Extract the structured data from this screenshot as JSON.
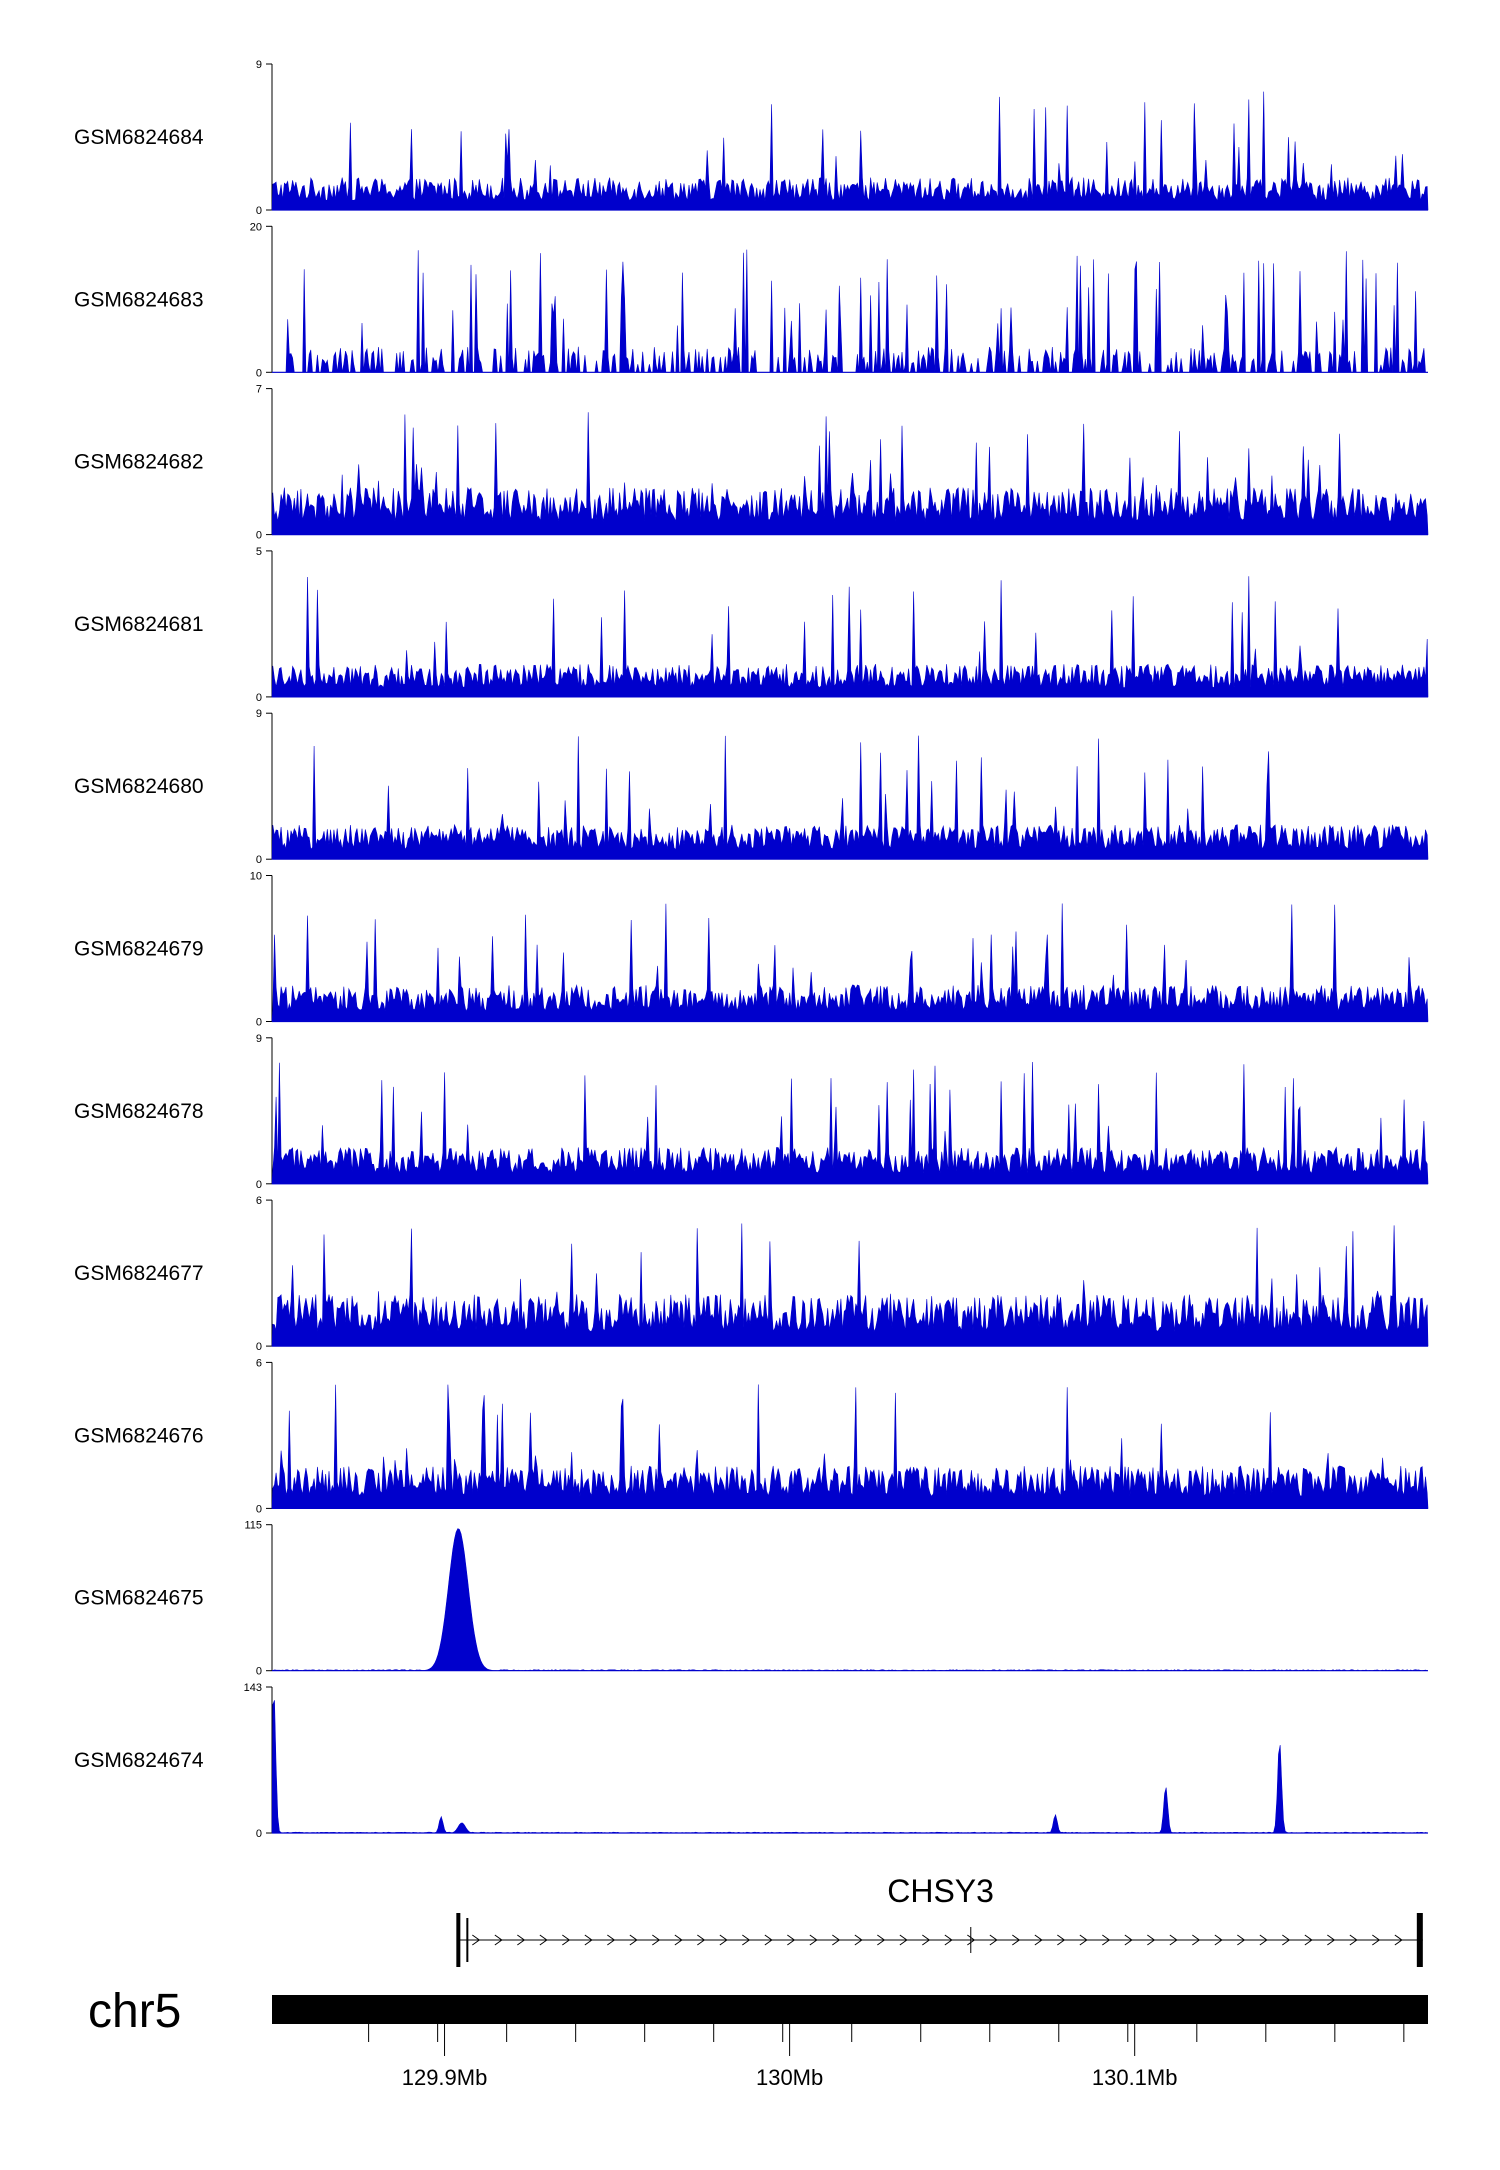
{
  "chart_data": {
    "type": "genome-track",
    "title": "",
    "track_color": "#0000CC",
    "gene_color": "#000000",
    "tracks": [
      {
        "sample": "GSM6824684",
        "ymin": 0,
        "ymax": 9,
        "pattern": "noise",
        "base": 1.6,
        "spike_rate": 0.05
      },
      {
        "sample": "GSM6824683",
        "ymin": 0,
        "ymax": 20,
        "pattern": "sparse",
        "base": 2.5,
        "spike_rate": 0.1
      },
      {
        "sample": "GSM6824682",
        "ymin": 0,
        "ymax": 7,
        "pattern": "noise",
        "base": 1.8,
        "spike_rate": 0.05
      },
      {
        "sample": "GSM6824681",
        "ymin": 0,
        "ymax": 5,
        "pattern": "noise",
        "base": 0.9,
        "spike_rate": 0.04
      },
      {
        "sample": "GSM6824680",
        "ymin": 0,
        "ymax": 9,
        "pattern": "noise",
        "base": 1.7,
        "spike_rate": 0.05
      },
      {
        "sample": "GSM6824679",
        "ymin": 0,
        "ymax": 10,
        "pattern": "noise",
        "base": 2.0,
        "spike_rate": 0.05
      },
      {
        "sample": "GSM6824678",
        "ymin": 0,
        "ymax": 9,
        "pattern": "noise",
        "base": 1.8,
        "spike_rate": 0.05
      },
      {
        "sample": "GSM6824677",
        "ymin": 0,
        "ymax": 6,
        "pattern": "noise",
        "base": 1.7,
        "spike_rate": 0.05
      },
      {
        "sample": "GSM6824676",
        "ymin": 0,
        "ymax": 6,
        "pattern": "noise",
        "base": 1.4,
        "spike_rate": 0.05
      },
      {
        "sample": "GSM6824675",
        "ymin": 0,
        "ymax": 115,
        "pattern": "flat",
        "base": 0.8,
        "peaks": [
          {
            "pos": 129.904,
            "height": 112,
            "width": 0.004
          }
        ]
      },
      {
        "sample": "GSM6824674",
        "ymin": 0,
        "ymax": 143,
        "pattern": "flat",
        "base": 0.8,
        "peaks": [
          {
            "pos": 129.8505,
            "height": 140,
            "width": 0.0008
          },
          {
            "pos": 129.899,
            "height": 16,
            "width": 0.0008
          },
          {
            "pos": 129.905,
            "height": 10,
            "width": 0.0015
          },
          {
            "pos": 130.077,
            "height": 18,
            "width": 0.0008
          },
          {
            "pos": 130.109,
            "height": 46,
            "width": 0.0008
          },
          {
            "pos": 130.142,
            "height": 90,
            "width": 0.0008
          }
        ]
      }
    ],
    "gene": {
      "name": "CHSY3",
      "start": 129.904,
      "end": 130.1835,
      "strand": "+"
    },
    "chromosome": {
      "label": "chr5",
      "start": 129.85,
      "end": 130.185
    },
    "xaxis": {
      "min": 129.85,
      "max": 130.185,
      "minor_ticks": [
        129.878,
        129.898,
        129.918,
        129.938,
        129.958,
        129.978,
        129.998,
        130.018,
        130.038,
        130.058,
        130.078,
        130.098,
        130.118,
        130.138,
        130.158,
        130.178
      ],
      "major_ticks": [
        {
          "value": 129.9,
          "label": "129.9Mb"
        },
        {
          "value": 130.0,
          "label": "130Mb"
        },
        {
          "value": 130.1,
          "label": "130.1Mb"
        }
      ]
    }
  }
}
